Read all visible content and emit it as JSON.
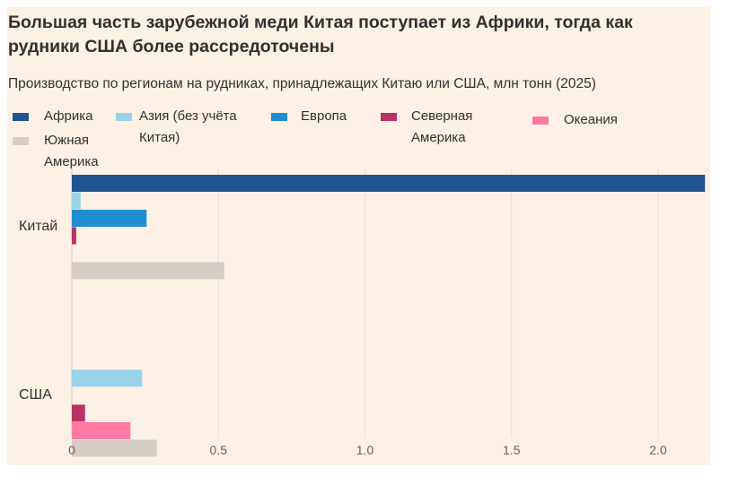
{
  "chart_data": {
    "type": "bar",
    "orientation": "horizontal",
    "title": "Большая часть зарубежной меди Китая поступает из Африки, тогда как рудники США более рассредоточены",
    "subtitle": "Производство по регионам на рудниках, принадлежащих Китаю или США, млн тонн (2025)",
    "categories": [
      "Китай",
      "США"
    ],
    "series": [
      {
        "name": "Африка",
        "color": "#205493",
        "values": [
          2.16,
          0
        ]
      },
      {
        "name": "Азия (без учёта Китая)",
        "color": "#99d3ea",
        "values": [
          0.03,
          0.24
        ]
      },
      {
        "name": "Европа",
        "color": "#1f8ed1",
        "values": [
          0.255,
          0
        ]
      },
      {
        "name": "Северная Америка",
        "color": "#b83363",
        "values": [
          0.015,
          0.045
        ]
      },
      {
        "name": "Океания",
        "color": "#ff7aa2",
        "values": [
          0,
          0.2
        ]
      },
      {
        "name": "Южная Америка",
        "color": "#d5cdc6",
        "values": [
          0.52,
          0.29
        ]
      }
    ],
    "xlim": [
      0,
      2.2
    ],
    "xticks": [
      "0",
      "0.5",
      "1.0",
      "1.5",
      "2.0"
    ],
    "xtick_values": [
      0,
      0.5,
      1.0,
      1.5,
      2.0
    ],
    "grid": true,
    "legend_position": "top"
  }
}
